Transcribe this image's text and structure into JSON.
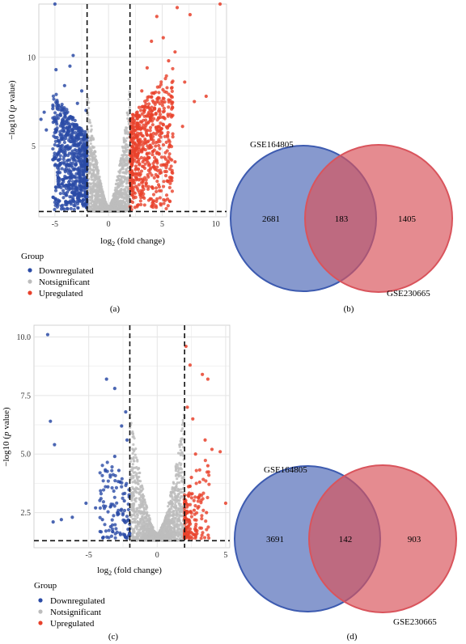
{
  "colors": {
    "down": "#2B4BA6",
    "ns": "#BDBDBD",
    "up": "#E8412B",
    "venn_blue": "#3D5BB0",
    "venn_red": "#D9545C",
    "panel_bg": "#FFFFFF",
    "grid": "#E5E5E5"
  },
  "legend": {
    "title": "Group",
    "items": [
      "Downregulated",
      "Notsignificant",
      "Upregulated"
    ]
  },
  "chart_data": [
    {
      "panel_label": "(a)",
      "type": "scatter",
      "subtype": "volcano",
      "xlabel_main": "log",
      "xlabel_sub": "2",
      "xlabel_rest": " (fold change)",
      "ylabel_main": "−log10 (",
      "ylabel_italic": "p",
      "ylabel_rest": " value)",
      "xlim": [
        -6.5,
        11
      ],
      "ylim": [
        1,
        13
      ],
      "xticks": [
        -5,
        0,
        5,
        10
      ],
      "yticks": [
        5,
        10
      ],
      "fc_threshold": [
        -2,
        2
      ],
      "p_threshold": 1.3,
      "grid": true,
      "legend_position": "bottom-left",
      "series": [
        {
          "name": "Downregulated",
          "points": [
            [
              -5,
              13
            ],
            [
              -3.3,
              10.1
            ],
            [
              -4.9,
              9.3
            ],
            [
              -6,
              6.9
            ],
            [
              -6.3,
              6.5
            ],
            [
              -5.8,
              5.9
            ],
            [
              -5.2,
              7.1
            ],
            [
              -4.7,
              5.3
            ],
            [
              -4.5,
              4.0
            ],
            [
              -4.1,
              8.4
            ],
            [
              -3.9,
              3.2
            ],
            [
              -3.6,
              9.5
            ],
            [
              -3.4,
              6.6
            ],
            [
              -3.2,
              2.4
            ],
            [
              -2.9,
              7.4
            ],
            [
              -2.7,
              4.6
            ],
            [
              -2.5,
              8.1
            ],
            [
              -2.3,
              3.1
            ],
            [
              -2.2,
              5.8
            ],
            [
              -2.1,
              7.0
            ]
          ]
        },
        {
          "name": "Upregulated",
          "points": [
            [
              10.4,
              13
            ],
            [
              6.4,
              12.8
            ],
            [
              7.6,
              12.4
            ],
            [
              4.5,
              12.3
            ],
            [
              5.1,
              11.1
            ],
            [
              4.0,
              10.9
            ],
            [
              6.2,
              10.3
            ],
            [
              5.6,
              9.8
            ],
            [
              7.1,
              8.6
            ],
            [
              9.1,
              7.8
            ],
            [
              8.0,
              7.5
            ],
            [
              6.9,
              6.1
            ],
            [
              5.5,
              5.6
            ],
            [
              6.2,
              4.1
            ],
            [
              4.9,
              3.5
            ],
            [
              3.6,
              9.4
            ],
            [
              3.1,
              8.1
            ],
            [
              2.6,
              6.7
            ],
            [
              2.3,
              4.1
            ],
            [
              2.1,
              2.6
            ]
          ]
        }
      ],
      "notsignificant_envelope": "grey points between log2FC −2 and 2"
    },
    {
      "panel_label": "(b)",
      "type": "venn",
      "sets": [
        {
          "name": "GSE164805",
          "only": 2681
        },
        {
          "name": "GSE230665",
          "only": 1405
        }
      ],
      "intersection": 183
    },
    {
      "panel_label": "(c)",
      "type": "scatter",
      "subtype": "volcano",
      "xlabel_main": "log",
      "xlabel_sub": "2",
      "xlabel_rest": " (fold change)",
      "ylabel_main": "−log10 (",
      "ylabel_italic": "p",
      "ylabel_rest": " value)",
      "xlim": [
        -9,
        5.3
      ],
      "ylim": [
        1,
        10.5
      ],
      "xticks": [
        -5,
        0,
        5
      ],
      "yticks": [
        2.5,
        5.0,
        7.5,
        10.0
      ],
      "ytick_labels": [
        "2.5",
        "5.0",
        "7.5",
        "10.0"
      ],
      "fc_threshold": [
        -2,
        2
      ],
      "p_threshold": 1.3,
      "grid": true,
      "legend_position": "bottom-left",
      "series": [
        {
          "name": "Downregulated",
          "points": [
            [
              -8.0,
              10.1
            ],
            [
              -3.7,
              8.2
            ],
            [
              -3.1,
              7.8
            ],
            [
              -2.3,
              6.8
            ],
            [
              -7.8,
              6.4
            ],
            [
              -7.5,
              5.4
            ],
            [
              -2.6,
              6.2
            ],
            [
              -2.2,
              5.6
            ],
            [
              -3.1,
              4.9
            ],
            [
              -2.8,
              4.3
            ],
            [
              -5.2,
              2.9
            ],
            [
              -6.2,
              2.3
            ],
            [
              -7.0,
              2.2
            ],
            [
              -7.6,
              2.1
            ],
            [
              -4.5,
              2.7
            ],
            [
              -3.6,
              3.6
            ],
            [
              -4.0,
              2.2
            ],
            [
              -2.4,
              3.0
            ],
            [
              -2.9,
              2.5
            ],
            [
              -3.4,
              1.9
            ]
          ]
        },
        {
          "name": "Upregulated",
          "points": [
            [
              2.1,
              9.6
            ],
            [
              2.4,
              8.8
            ],
            [
              3.3,
              8.4
            ],
            [
              3.7,
              8.2
            ],
            [
              2.2,
              7.0
            ],
            [
              2.6,
              6.5
            ],
            [
              3.5,
              5.6
            ],
            [
              2.8,
              5.0
            ],
            [
              4.0,
              5.2
            ],
            [
              3.7,
              4.5
            ],
            [
              4.6,
              5.1
            ],
            [
              5.0,
              2.9
            ],
            [
              2.5,
              4.0
            ],
            [
              2.3,
              3.2
            ],
            [
              3.1,
              3.8
            ],
            [
              2.7,
              2.6
            ],
            [
              2.2,
              2.2
            ],
            [
              3.6,
              2.5
            ],
            [
              2.4,
              1.8
            ],
            [
              2.9,
              1.6
            ]
          ]
        }
      ],
      "notsignificant_envelope": "grey points between log2FC −2 and 2"
    },
    {
      "panel_label": "(d)",
      "type": "venn",
      "sets": [
        {
          "name": "GSE164805",
          "only": 3691
        },
        {
          "name": "GSE230665",
          "only": 903
        }
      ],
      "intersection": 142
    }
  ]
}
